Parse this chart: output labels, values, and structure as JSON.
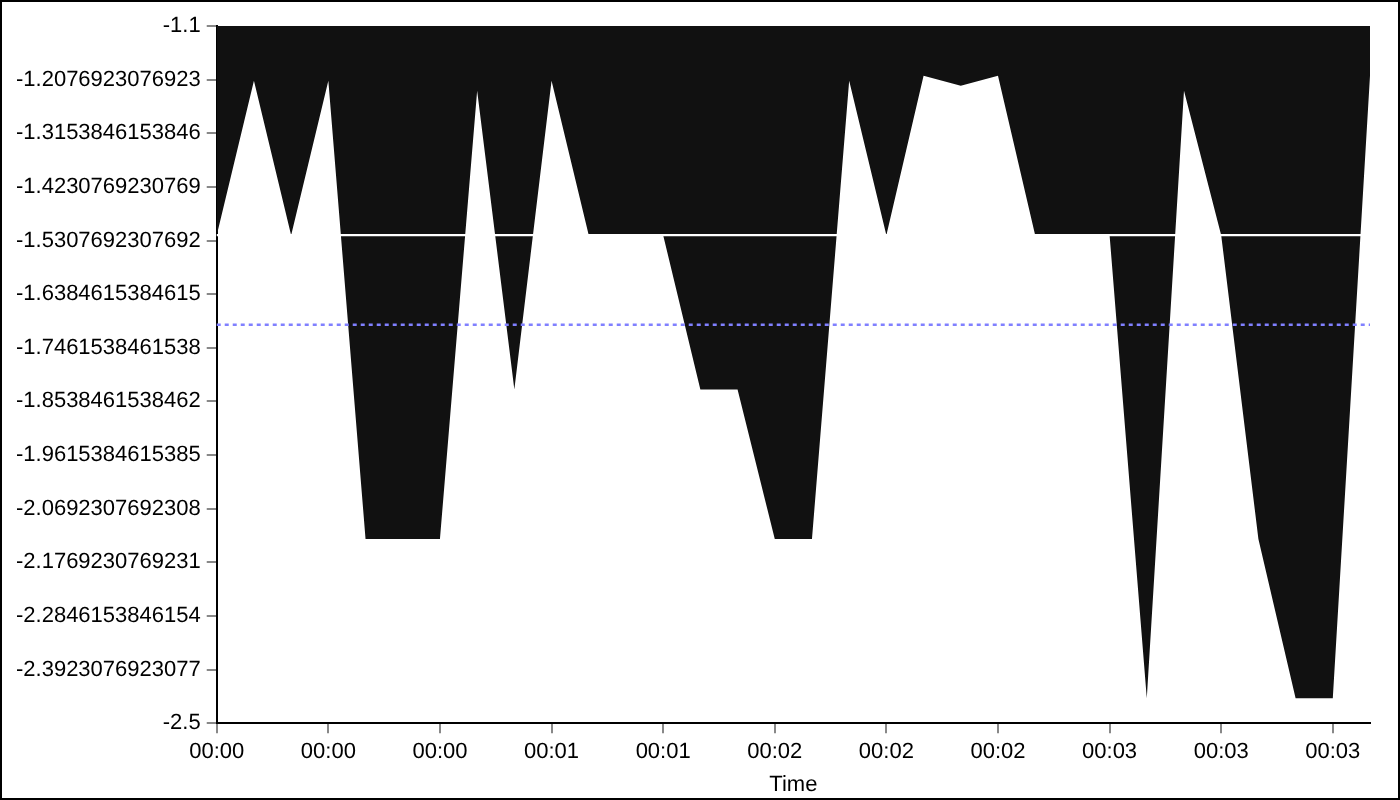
{
  "chart_data": {
    "type": "area",
    "xlabel": "Time",
    "categories": [
      "00:00",
      null,
      null,
      "00:00",
      null,
      null,
      "00:00",
      null,
      null,
      "00:01",
      null,
      null,
      "00:01",
      null,
      null,
      "00:02",
      null,
      null,
      "00:02",
      null,
      null,
      "00:02",
      null,
      null,
      "00:03",
      null,
      null,
      "00:03",
      null,
      null,
      "00:03",
      null
    ],
    "series": [
      {
        "color": "#111111",
        "values": [
          -1.52,
          -1.21,
          -1.52,
          -1.21,
          -2.13,
          -2.13,
          -2.13,
          -1.23,
          -1.83,
          -1.21,
          -1.52,
          -1.52,
          -1.52,
          -1.83,
          -1.83,
          -2.13,
          -2.13,
          -1.21,
          -1.52,
          -1.2,
          -1.22,
          -1.2,
          -1.52,
          -1.52,
          -1.52,
          -2.45,
          -1.23,
          -1.52,
          -2.13,
          -2.45,
          -2.45,
          -1.2
        ]
      }
    ],
    "ylim": [
      -2.5,
      -1.1
    ],
    "yticks": [
      -2.5,
      -2.3923076923077,
      -2.2846153846154,
      -2.1769230769231,
      -2.0692307692308,
      -1.9615384615385,
      -1.8538461538462,
      -1.7461538461538,
      -1.6384615384615,
      -1.5307692307692,
      -1.4230769230769,
      -1.3153846153846,
      -1.2076923076923,
      -1.1
    ],
    "ref_lines": [
      {
        "axis": "y",
        "value": -1.52,
        "color": "#ffffff",
        "line_style": "solid"
      },
      {
        "axis": "y",
        "value": -1.7,
        "color": "#8080ff",
        "line_style": "dotted"
      }
    ],
    "grid": false,
    "legend": false
  }
}
